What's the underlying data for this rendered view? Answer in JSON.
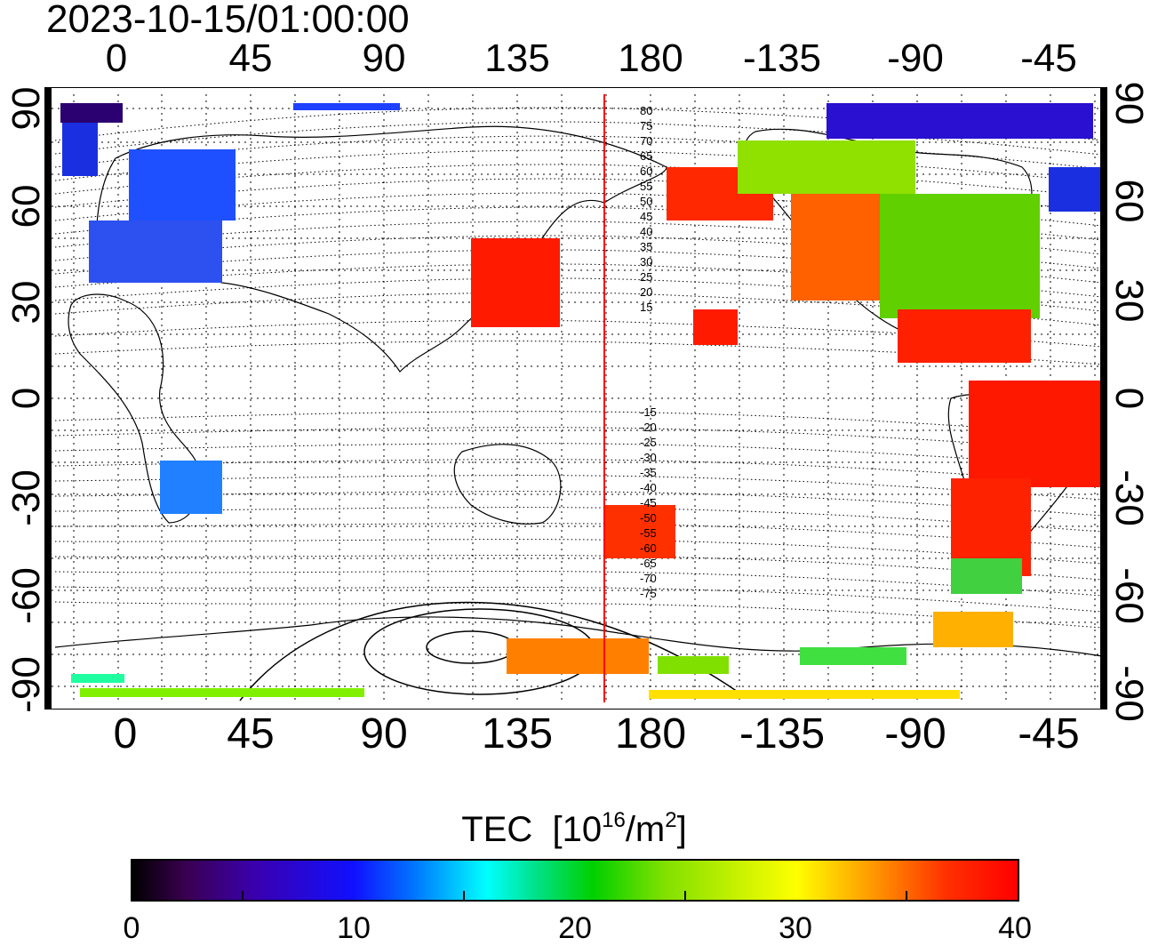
{
  "title": "2023-10-15/01:00:00",
  "lon_labels": [
    "0",
    "45",
    "90",
    "135",
    "180",
    "-135",
    "-90",
    "-45"
  ],
  "lat_labels": [
    "90",
    "60",
    "30",
    "0",
    "-30",
    "-60",
    "-90"
  ],
  "contour_labels": {
    "north": [
      "80",
      "75",
      "70",
      "65",
      "60",
      "55",
      "50",
      "45",
      "40",
      "35",
      "30",
      "25",
      "20",
      "15"
    ],
    "south": [
      "-15",
      "-20",
      "-25",
      "-30",
      "-35",
      "-40",
      "-45",
      "-50",
      "-55",
      "-60",
      "-65",
      "-70",
      "-75"
    ]
  },
  "colorbar": {
    "title": "TEC",
    "unit_base": "[10",
    "unit_exp": "16",
    "unit_mid": "/m",
    "unit_exp2": "2",
    "unit_close": "]",
    "ticks": [
      "0",
      "10",
      "20",
      "30",
      "40"
    ],
    "range": [
      0,
      40
    ]
  },
  "meridian_marker_color": "#ff0000",
  "map_extent": {
    "lon_start": -25,
    "lat_range": [
      -90,
      90
    ]
  }
}
